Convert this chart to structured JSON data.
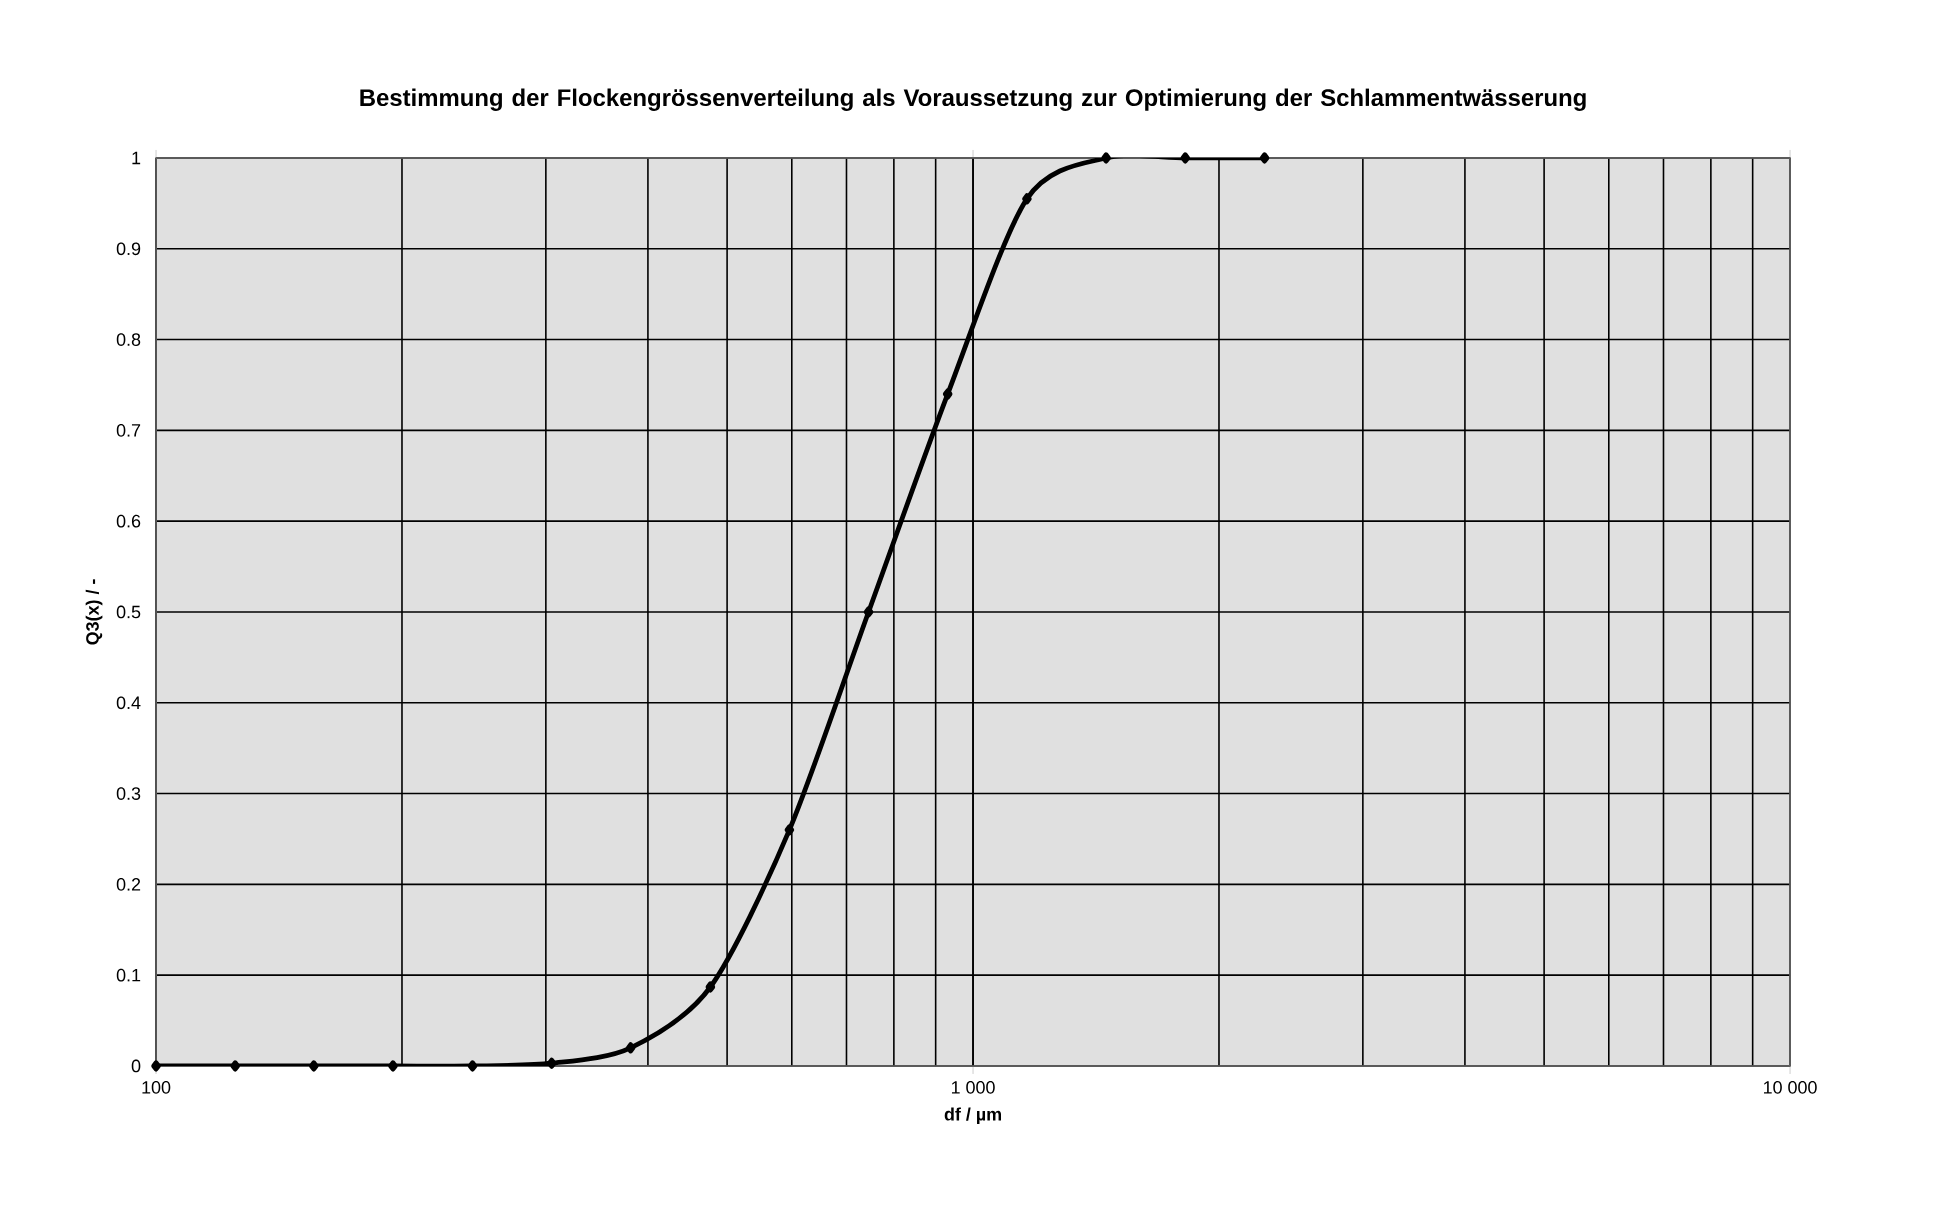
{
  "chart_data": {
    "type": "line",
    "title": "Bestimmung der Flockengrössenverteilung als Voraussetzung zur Optimierung der Schlammentwässerung",
    "xlabel": "df / µm",
    "ylabel": "Q3(x) / -",
    "x": [
      100,
      125,
      156,
      195,
      244,
      305,
      381,
      477,
      596,
      745,
      931,
      1164,
      1455,
      1819,
      2274
    ],
    "series": [
      {
        "color": "#000000",
        "values": [
          0,
          0,
          0,
          0,
          0,
          0.003,
          0.02,
          0.087,
          0.26,
          0.5,
          0.74,
          0.955,
          1,
          1,
          1
        ]
      }
    ],
    "log": "x",
    "xlim": [
      100,
      10000
    ],
    "xticks": [
      100,
      {
        "value": 1000,
        "label": "1 000"
      },
      {
        "value": 10000,
        "label": "10 000"
      }
    ],
    "ylim": [
      0,
      1
    ],
    "yticks": [
      0,
      0.1,
      0.2,
      0.3,
      0.4,
      0.5,
      0.6,
      0.7,
      0.8,
      0.9,
      1
    ],
    "grid": true,
    "marker": "diamond",
    "line_style": "solid"
  }
}
